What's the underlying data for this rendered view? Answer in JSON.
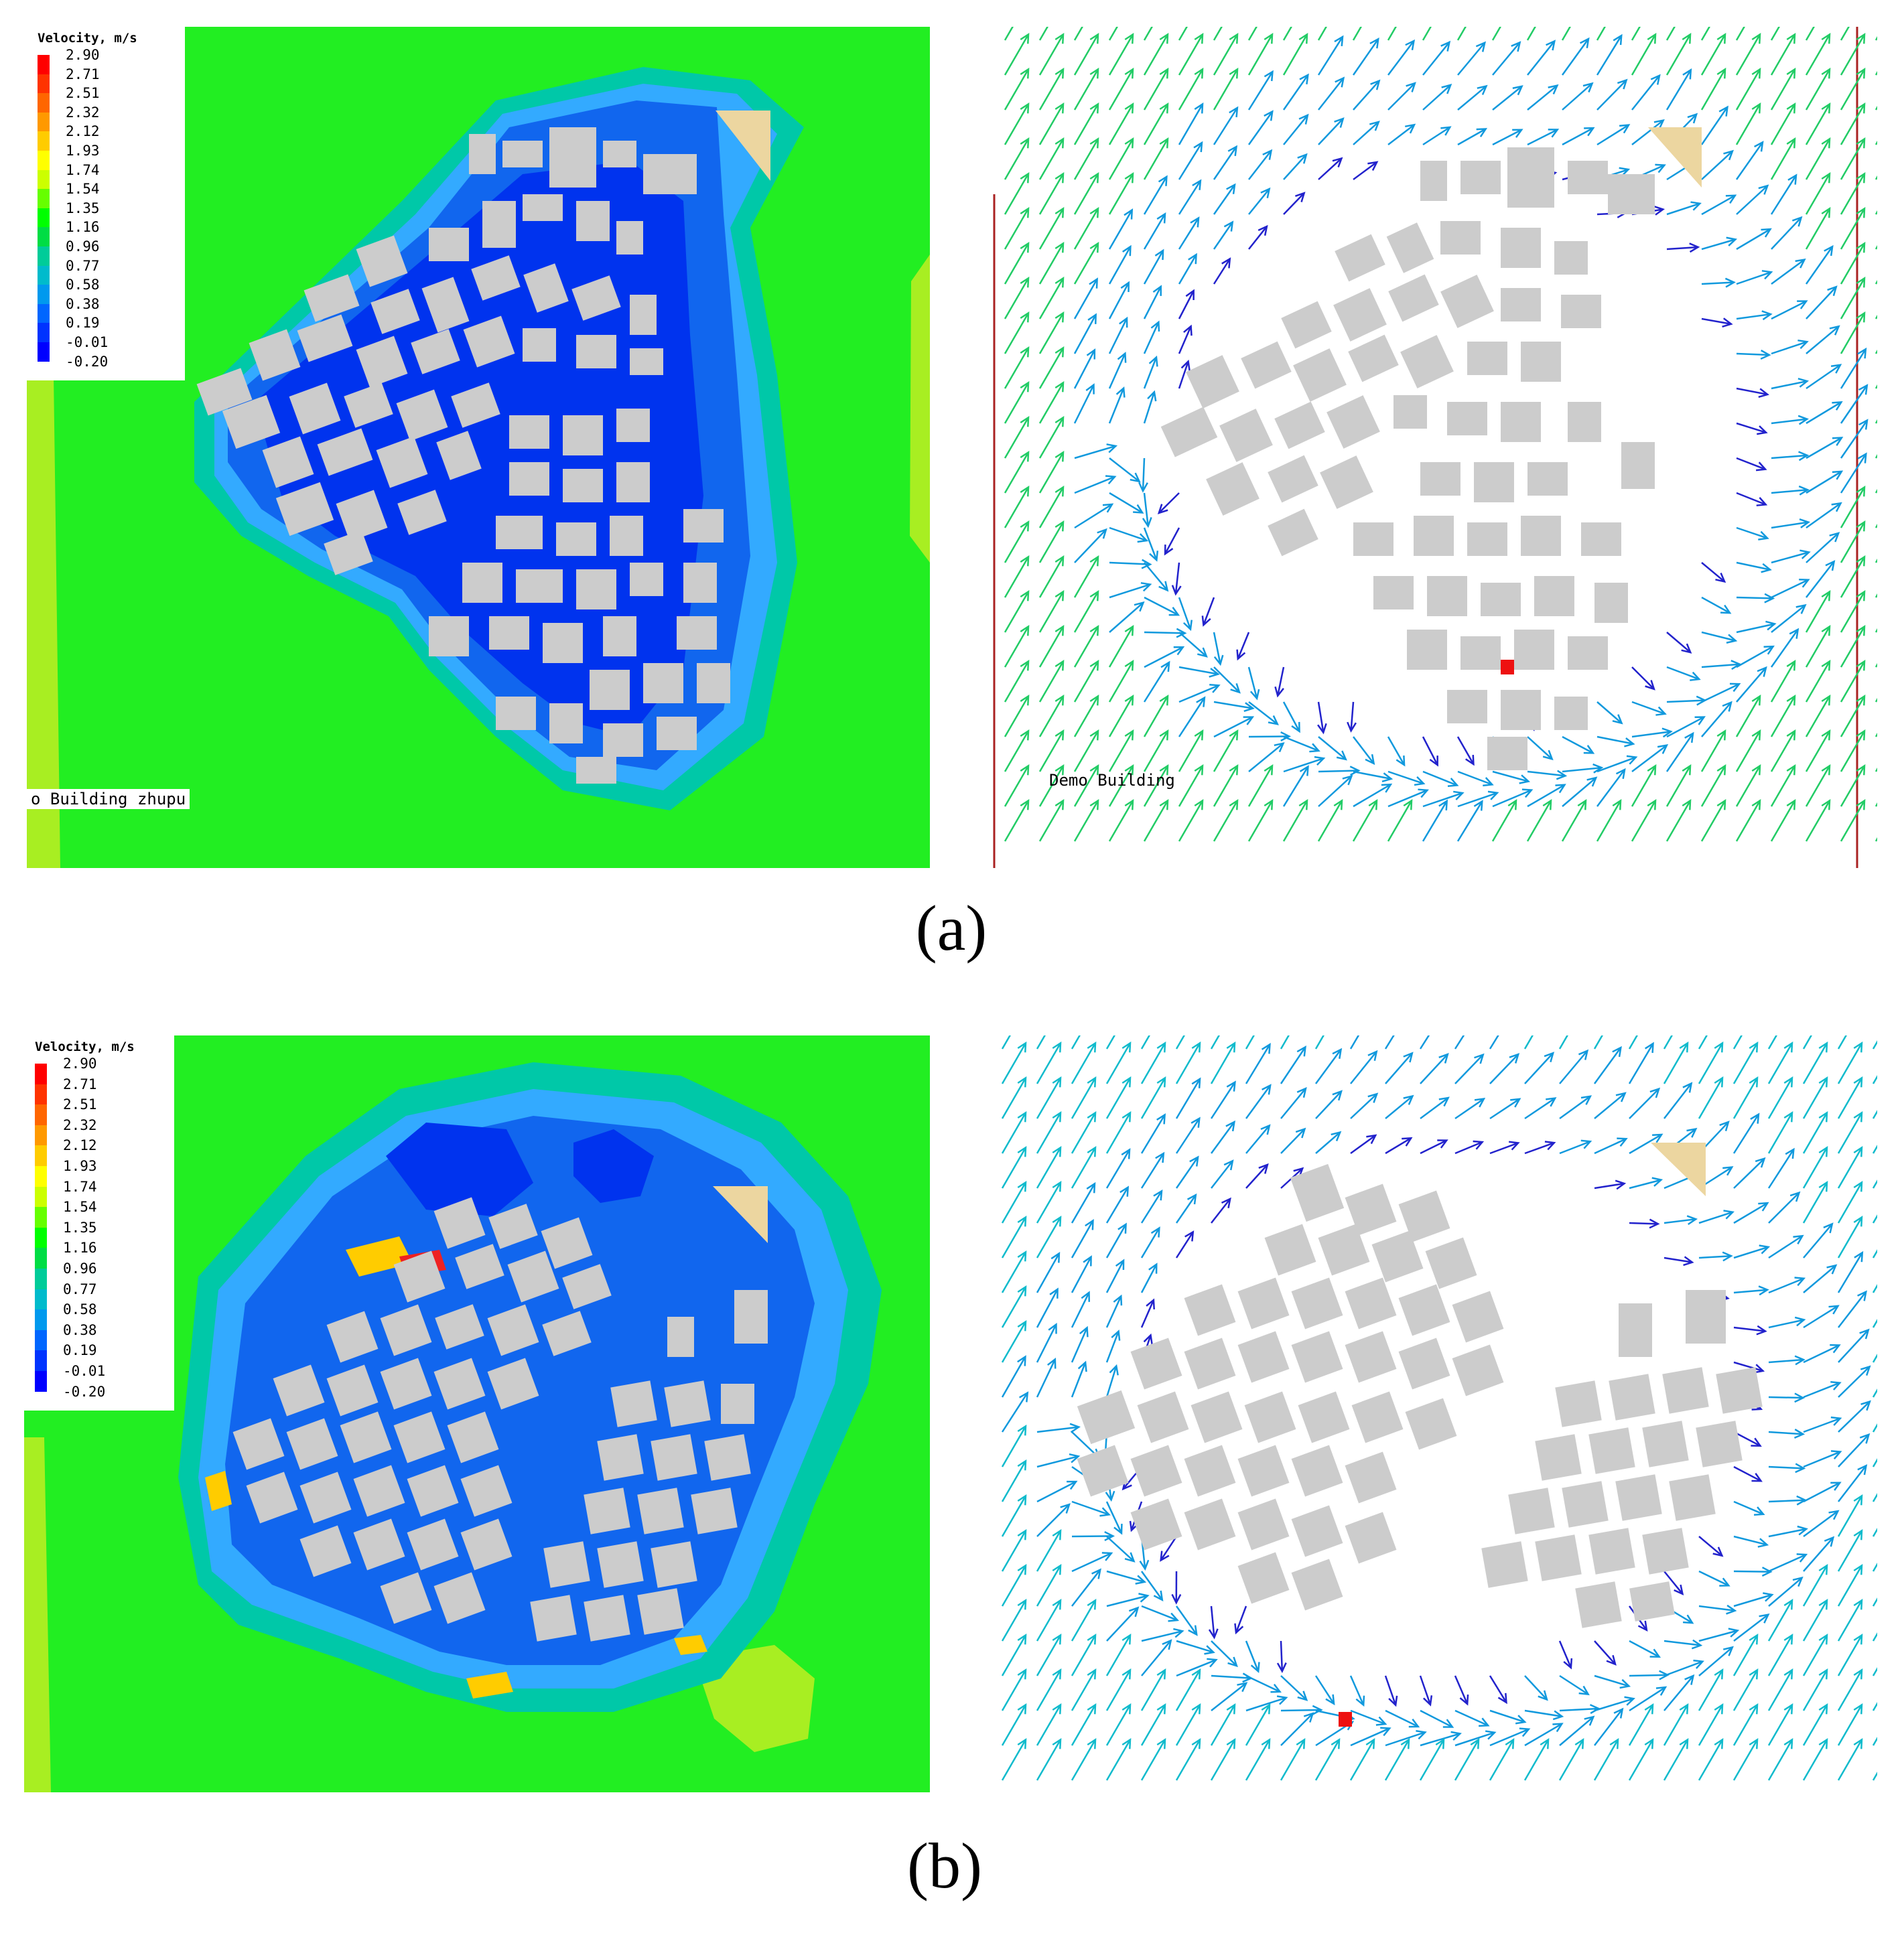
{
  "legend": {
    "title": "Velocity, m/s",
    "ticks": [
      "2.90",
      "2.71",
      "2.51",
      "2.32",
      "2.12",
      "1.93",
      "1.74",
      "1.54",
      "1.35",
      "1.16",
      "0.96",
      "0.77",
      "0.58",
      "0.38",
      "0.19",
      "-0.01",
      "-0.20"
    ],
    "colors": [
      "#ff0000",
      "#ff3300",
      "#ff6600",
      "#ff9900",
      "#ffcc00",
      "#ffff00",
      "#ccff00",
      "#66ff00",
      "#00ff00",
      "#00dd44",
      "#00cc99",
      "#00bbcc",
      "#0099ee",
      "#0066ff",
      "#0033ff",
      "#0000ff"
    ]
  },
  "panels": {
    "a_contour": {
      "model_label": "o Building zhupu"
    },
    "a_vector": {
      "model_label": "Demo Building"
    },
    "b_contour": {},
    "b_vector": {}
  },
  "captions": {
    "a": "(a)",
    "b": "(b)"
  },
  "colors": {
    "background_field": "#22ee22",
    "low_velocity": "#1144ee",
    "building": "#cccccc",
    "target_building": "#ecd6a0",
    "vector_high": "#22cc66",
    "vector_low": "#2222cc"
  }
}
